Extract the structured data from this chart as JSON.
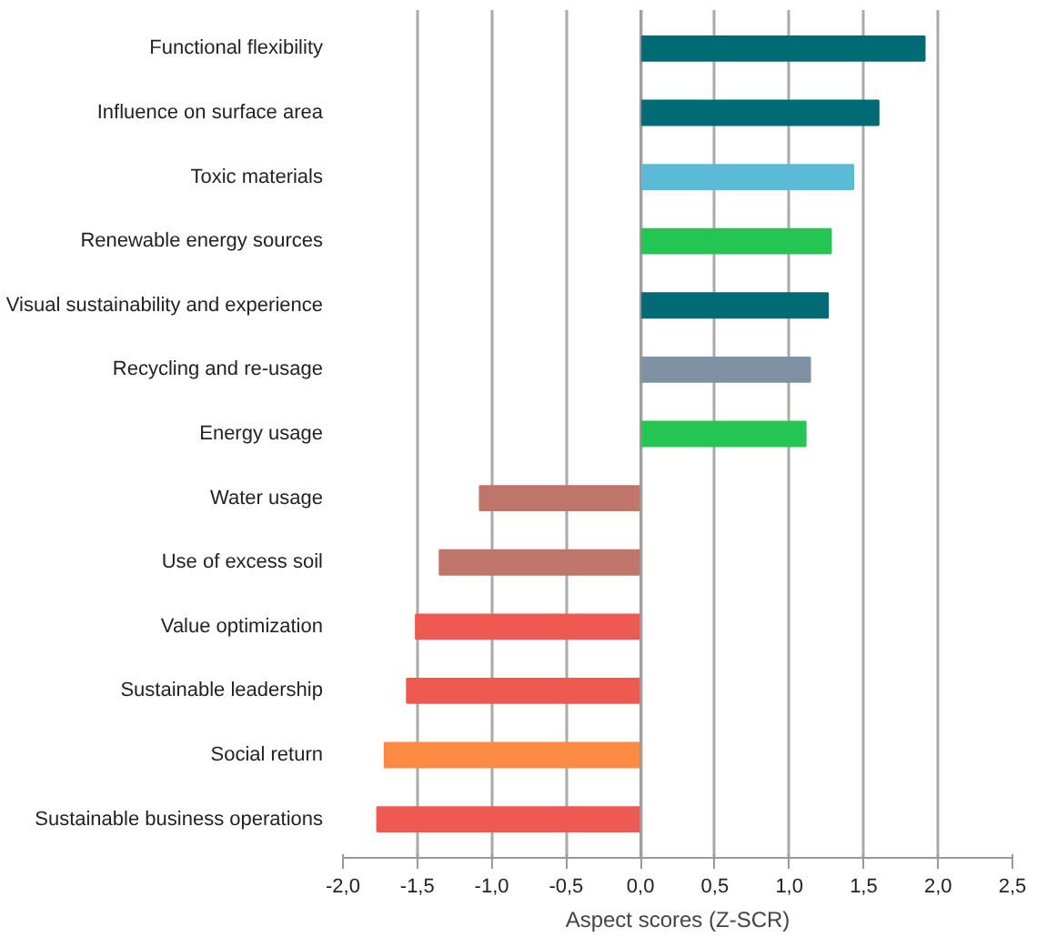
{
  "chart_data": {
    "type": "bar",
    "orientation": "horizontal",
    "xlabel": "Aspect scores (Z-SCR)",
    "categories": [
      "Functional flexibility",
      "Influence on surface area",
      "Toxic materials",
      "Renewable energy sources",
      "Visual sustainability and experience",
      "Recycling and re-usage",
      "Energy usage",
      "Water usage",
      "Use of excess soil",
      "Value optimization",
      "Sustainable leadership",
      "Social return",
      "Sustainable business operations"
    ],
    "values": [
      1.91,
      1.6,
      1.43,
      1.28,
      1.26,
      1.14,
      1.11,
      -1.08,
      -1.35,
      -1.51,
      -1.57,
      -1.72,
      -1.77
    ],
    "colors": [
      "#006b75",
      "#006b75",
      "#5bbad5",
      "#25c554",
      "#006b75",
      "#7f91a3",
      "#25c554",
      "#c0756a",
      "#c0756a",
      "#ee5a52",
      "#ee5a52",
      "#fb8a45",
      "#ee5a52"
    ],
    "xlim": [
      -2.0,
      2.5
    ],
    "xticks": [
      {
        "value": -2.0,
        "label": "-2,0"
      },
      {
        "value": -1.5,
        "label": "-1,5"
      },
      {
        "value": -1.0,
        "label": "-1,0"
      },
      {
        "value": -0.5,
        "label": "-0,5"
      },
      {
        "value": 0.0,
        "label": "0,0"
      },
      {
        "value": 0.5,
        "label": "0,5"
      },
      {
        "value": 1.0,
        "label": "1,0"
      },
      {
        "value": 1.5,
        "label": "1,5"
      },
      {
        "value": 2.0,
        "label": "2,0"
      },
      {
        "value": 2.5,
        "label": "2,5"
      }
    ],
    "grid": "x"
  }
}
